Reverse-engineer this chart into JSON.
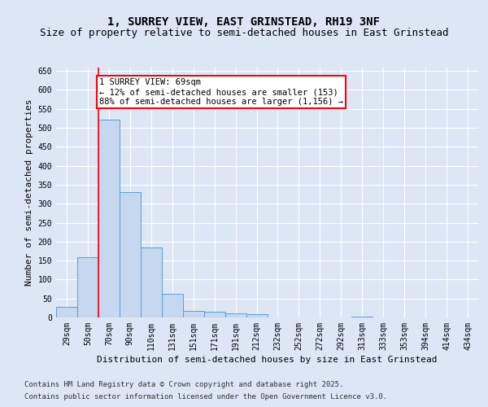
{
  "title": "1, SURREY VIEW, EAST GRINSTEAD, RH19 3NF",
  "subtitle": "Size of property relative to semi-detached houses in East Grinstead",
  "xlabel": "Distribution of semi-detached houses by size in East Grinstead",
  "ylabel": "Number of semi-detached properties",
  "footer_line1": "Contains HM Land Registry data © Crown copyright and database right 2025.",
  "footer_line2": "Contains public sector information licensed under the Open Government Licence v3.0.",
  "categories": [
    "29sqm",
    "50sqm",
    "70sqm",
    "90sqm",
    "110sqm",
    "131sqm",
    "151sqm",
    "171sqm",
    "191sqm",
    "212sqm",
    "232sqm",
    "252sqm",
    "272sqm",
    "292sqm",
    "313sqm",
    "333sqm",
    "353sqm",
    "394sqm",
    "414sqm",
    "434sqm"
  ],
  "values": [
    28,
    158,
    522,
    330,
    185,
    62,
    18,
    15,
    10,
    8,
    0,
    0,
    0,
    0,
    2,
    0,
    0,
    0,
    0,
    0
  ],
  "bar_color": "#c5d8f0",
  "bar_edge_color": "#5a9fd4",
  "property_line_x": 2,
  "annotation_text": "1 SURREY VIEW: 69sqm\n← 12% of semi-detached houses are smaller (153)\n88% of semi-detached houses are larger (1,156) →",
  "annotation_box_color": "white",
  "annotation_box_edge_color": "red",
  "vline_color": "red",
  "ylim": [
    0,
    660
  ],
  "yticks": [
    0,
    50,
    100,
    150,
    200,
    250,
    300,
    350,
    400,
    450,
    500,
    550,
    600,
    650
  ],
  "background_color": "#dce6f5",
  "plot_background_color": "#dce6f5",
  "title_fontsize": 10,
  "subtitle_fontsize": 9,
  "tick_fontsize": 7,
  "label_fontsize": 8,
  "footer_fontsize": 6.5,
  "annotation_fontsize": 7.5
}
